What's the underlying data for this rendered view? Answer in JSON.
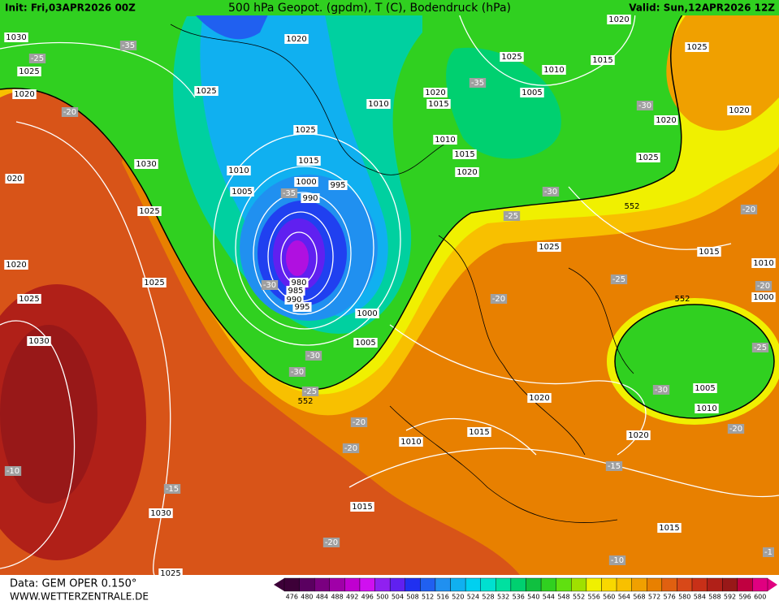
{
  "header": {
    "init": "Init: Fri,03APR2026 00Z",
    "title": "500 hPa Geopot. (gpdm), T (C), Bodendruck (hPa)",
    "valid": "Valid: Sun,12APR2026 12Z"
  },
  "footer": {
    "source": "Data: GEM OPER 0.150°",
    "site": "WWW.WETTERZENTRALE.DE"
  },
  "map": {
    "pressure_labels": [
      "1030",
      "1025",
      "1020",
      "1020",
      "1020",
      "1025",
      "1015",
      "1010",
      "1025",
      "1020",
      "1025",
      "1010",
      "1020",
      "1015",
      "1005",
      "1020",
      "1025",
      "1010",
      "1015",
      "1020",
      "1025",
      "1030",
      "1015",
      "1010",
      "1000",
      "995",
      "1005",
      "990",
      "020",
      "1025",
      "1025",
      "1015",
      "1010",
      "1020",
      "1025",
      "980",
      "985",
      "990",
      "995",
      "1000",
      "1025",
      "1005",
      "1030",
      "1005",
      "1010",
      "1020",
      "1015",
      "1010",
      "1020",
      "1030",
      "1015",
      "1015",
      "1025",
      "1000"
    ],
    "temperature_labels": [
      "-35",
      "-25",
      "-20",
      "-35",
      "-30",
      "-30",
      "-35",
      "-25",
      "-20",
      "-25",
      "-30",
      "-20",
      "-20",
      "-25",
      "-30",
      "-30",
      "-25",
      "-30",
      "-20",
      "-20",
      "-20",
      "-15",
      "-10",
      "-15",
      "-20",
      "-10",
      "-1"
    ],
    "contour_labels": [
      "552",
      "552",
      "552"
    ]
  },
  "colorbar": {
    "values": [
      476,
      480,
      484,
      488,
      492,
      496,
      500,
      504,
      508,
      512,
      516,
      520,
      524,
      528,
      532,
      536,
      540,
      544,
      548,
      552,
      556,
      560,
      564,
      568,
      572,
      576,
      580,
      584,
      588,
      592,
      596,
      600
    ],
    "colors": [
      "#3d0038",
      "#5a0060",
      "#7a0080",
      "#a000a8",
      "#c000d0",
      "#d010f0",
      "#9020f0",
      "#6020f0",
      "#2030f0",
      "#2060f0",
      "#2090f0",
      "#10b0f0",
      "#00d0f0",
      "#00e0d0",
      "#00e0a0",
      "#00d070",
      "#10c040",
      "#30d020",
      "#60e010",
      "#a0e000",
      "#f0f000",
      "#f8d800",
      "#f8c000",
      "#f0a000",
      "#e88000",
      "#e06010",
      "#d84818",
      "#c83018",
      "#b02018",
      "#981818",
      "#c00040",
      "#e00080"
    ]
  }
}
